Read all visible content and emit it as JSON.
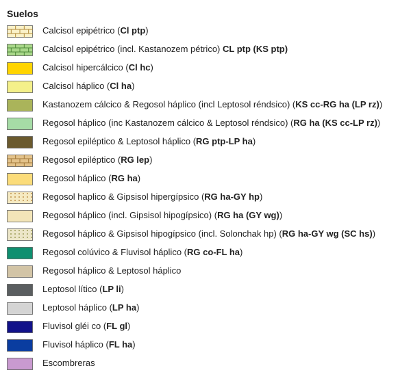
{
  "title": "Suelos",
  "legend": {
    "swatch_w": 38,
    "swatch_h": 18,
    "border_color": "#5a5a5a",
    "brick_line_color": "#9a7a3a",
    "brick_line_color_green": "#4a7a3a",
    "dot_color": "#b07a2a",
    "dot_color_light": "#c9a85a",
    "label_fontsize": 13,
    "label_color": "#222222",
    "items": [
      {
        "pattern": "brick",
        "fill": "#faf1c8",
        "line": "#b08a3a",
        "html": "Calcisol epipétrico (<b>Cl ptp</b>)"
      },
      {
        "pattern": "brick",
        "fill": "#a9d88a",
        "line": "#4f8a3a",
        "html": "Calcisol epipétrico  (incl. Kastanozem pétrico)  <b>CL ptp (KS ptp)</b>"
      },
      {
        "pattern": "solid",
        "fill": "#ffd400",
        "html": "Calcisol hipercálcico (<b>Cl hc</b>)"
      },
      {
        "pattern": "solid",
        "fill": "#f4f08a",
        "html": "Calcisol háplico (<b>Cl ha</b>)"
      },
      {
        "pattern": "solid",
        "fill": "#aab45a",
        "html": "Kastanozem cálcico &amp; Regosol háplico (incl Leptosol réndsico) (<b>KS cc-RG ha (LP rz)</b>)"
      },
      {
        "pattern": "solid",
        "fill": "#a6dca6",
        "html": "Regosol háplico (inc Kastanozem cálcico &amp; Leptosol réndsico) (<b>RG ha (KS cc-LP rz)</b>)"
      },
      {
        "pattern": "solid",
        "fill": "#6b5a2e",
        "html": "Regosol epiléptico &amp; Leptosol háplico  (<b>RG ptp-LP ha</b>)"
      },
      {
        "pattern": "brick",
        "fill": "#e3c28a",
        "line": "#a0783a",
        "html": "Regosol epiléptico (<b>RG lep</b>)"
      },
      {
        "pattern": "solid",
        "fill": "#fbdc7a",
        "html": "Regosol háplico (<b>RG ha</b>)"
      },
      {
        "pattern": "dots",
        "fill": "#f6eac2",
        "dot": "#b07a2a",
        "html": "Regosol haplico  &amp; Gipsisol hipergípsico (<b>RG ha-GY hp</b>)"
      },
      {
        "pattern": "solid",
        "fill": "#f3e5b8",
        "html": "Regosol háplico (incl. Gipsisol hipogípsico) (<b>RG ha (GY wg)</b>)"
      },
      {
        "pattern": "dots",
        "fill": "#ece6c8",
        "dot": "#8a8a3a",
        "html": "Regosol háplico &amp; Gipsisol hipogípsico (incl. Solonchak hp) (<b>RG ha-GY wg (SC hs)</b>)"
      },
      {
        "pattern": "solid",
        "fill": "#0f8f70",
        "html": "Regosol colúvico &amp; Fluvisol háplico (<b>RG co-FL ha</b>)"
      },
      {
        "pattern": "solid",
        "fill": "#d2c4a6",
        "html": "Regosol háplico &amp; Leptosol háplico"
      },
      {
        "pattern": "solid",
        "fill": "#5a5e60",
        "html": "Leptosol lítico (<b>LP li</b>)"
      },
      {
        "pattern": "solid",
        "fill": "#d4d4d4",
        "html": "Leptosol háplico (<b>LP ha</b>)"
      },
      {
        "pattern": "solid",
        "fill": "#12128a",
        "html": "Fluvisol gléi co (<b>FL gl</b>)"
      },
      {
        "pattern": "solid",
        "fill": "#0a3da0",
        "html": "Fluvisol háplico (<b>FL ha</b>)"
      },
      {
        "pattern": "solid",
        "fill": "#c99ad0",
        "html": "Escombreras"
      }
    ]
  }
}
